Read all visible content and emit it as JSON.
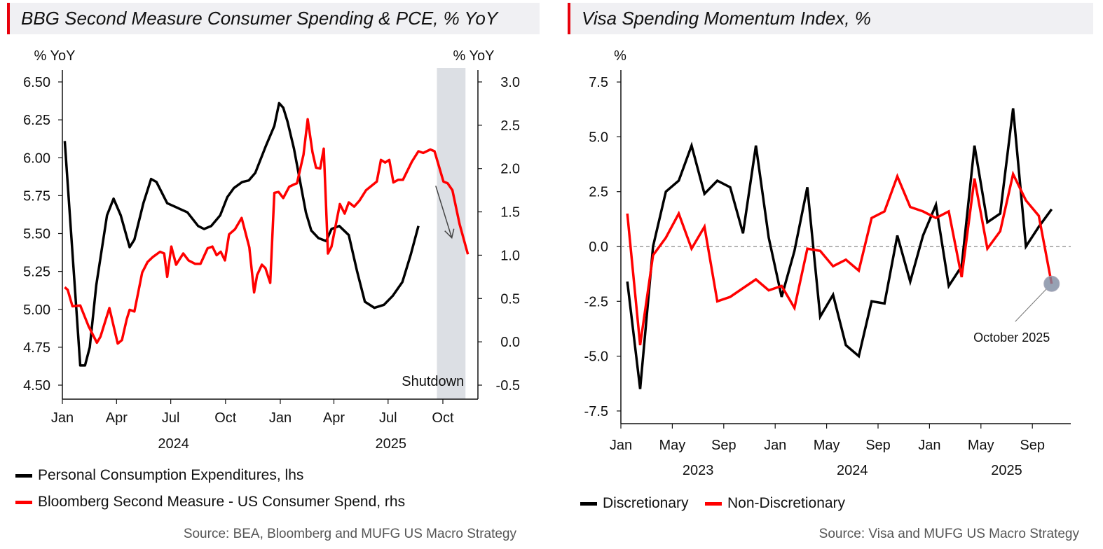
{
  "left": {
    "title": "BBG Second Measure Consumer Spending & PCE, % YoY",
    "source": "Source: BEA, Bloomberg and MUFG US Macro Strategy",
    "legend": [
      {
        "label": "Personal Consumption Expenditures, lhs",
        "color": "#000000"
      },
      {
        "label": "Bloomberg Second Measure - US Consumer Spend, rhs",
        "color": "#ff0000"
      }
    ]
  },
  "right": {
    "title": "Visa Spending Momentum Index, %",
    "source": "Source: Visa and MUFG US Macro Strategy",
    "legend": [
      {
        "label": "Discretionary",
        "color": "#000000"
      },
      {
        "label": "Non-Discretionary",
        "color": "#ff0000"
      }
    ]
  },
  "chart_data": [
    {
      "type": "line",
      "title": "BBG Second Measure Consumer Spending & PCE, % YoY",
      "ylabel": "% YoY",
      "y2label": "% YoY",
      "ylim": [
        4.5,
        6.5
      ],
      "y2lim": [
        -0.5,
        3.0
      ],
      "yticks": [
        "6.50",
        "6.25",
        "6.00",
        "5.75",
        "5.50",
        "5.25",
        "5.00",
        "4.75",
        "4.50"
      ],
      "y2ticks": [
        "3.0",
        "2.5",
        "2.0",
        "1.5",
        "1.0",
        "0.5",
        "0.0",
        "-0.5"
      ],
      "xlim": [
        "2024-01-01",
        "2025-11-28"
      ],
      "xticks": [
        {
          "date": "2024-01-01",
          "label": "Jan"
        },
        {
          "date": "2024-04-01",
          "label": "Apr"
        },
        {
          "date": "2024-07-01",
          "label": "Jul"
        },
        {
          "date": "2024-10-01",
          "label": "Oct"
        },
        {
          "date": "2025-01-01",
          "label": "Jan"
        },
        {
          "date": "2025-04-01",
          "label": "Apr"
        },
        {
          "date": "2025-07-01",
          "label": "Jul"
        },
        {
          "date": "2025-10-01",
          "label": "Oct"
        }
      ],
      "years": [
        {
          "label": "2024",
          "date": "2024-07-01"
        },
        {
          "label": "2025",
          "date": "2025-07-01"
        }
      ],
      "shaded": {
        "label": "Shutdown",
        "from": "2025-09-21",
        "to": "2025-11-08",
        "color": "#dcdfe4"
      },
      "grid": false,
      "legend_position": "bottom",
      "series": [
        {
          "name": "Personal Consumption Expenditures, lhs",
          "axis": "left",
          "color": "#000000",
          "points": [
            [
              "2024-01-05",
              6.11
            ],
            [
              "2024-01-31",
              4.63
            ],
            [
              "2024-02-08",
              4.63
            ],
            [
              "2024-02-16",
              4.75
            ],
            [
              "2024-02-27",
              5.16
            ],
            [
              "2024-03-16",
              5.62
            ],
            [
              "2024-03-27",
              5.73
            ],
            [
              "2024-04-08",
              5.62
            ],
            [
              "2024-04-23",
              5.41
            ],
            [
              "2024-05-01",
              5.46
            ],
            [
              "2024-05-16",
              5.7
            ],
            [
              "2024-05-29",
              5.86
            ],
            [
              "2024-06-07",
              5.84
            ],
            [
              "2024-06-25",
              5.7
            ],
            [
              "2024-07-29",
              5.64
            ],
            [
              "2024-08-16",
              5.55
            ],
            [
              "2024-08-26",
              5.53
            ],
            [
              "2024-09-07",
              5.55
            ],
            [
              "2024-09-22",
              5.62
            ],
            [
              "2024-10-04",
              5.74
            ],
            [
              "2024-10-15",
              5.8
            ],
            [
              "2024-10-29",
              5.84
            ],
            [
              "2024-11-09",
              5.85
            ],
            [
              "2024-11-20",
              5.9
            ],
            [
              "2024-12-08",
              6.08
            ],
            [
              "2024-12-22",
              6.21
            ],
            [
              "2024-12-30",
              6.36
            ],
            [
              "2025-01-06",
              6.33
            ],
            [
              "2025-01-13",
              6.24
            ],
            [
              "2025-01-24",
              6.06
            ],
            [
              "2025-02-13",
              5.64
            ],
            [
              "2025-02-22",
              5.52
            ],
            [
              "2025-03-06",
              5.47
            ],
            [
              "2025-03-19",
              5.45
            ],
            [
              "2025-03-28",
              5.53
            ],
            [
              "2025-04-10",
              5.55
            ],
            [
              "2025-04-26",
              5.49
            ],
            [
              "2025-05-10",
              5.25
            ],
            [
              "2025-05-23",
              5.05
            ],
            [
              "2025-06-08",
              5.01
            ],
            [
              "2025-06-24",
              5.03
            ],
            [
              "2025-07-09",
              5.09
            ],
            [
              "2025-07-25",
              5.18
            ],
            [
              "2025-08-08",
              5.36
            ],
            [
              "2025-08-21",
              5.55
            ]
          ]
        },
        {
          "name": "Bloomberg Second Measure - US Consumer Spend, rhs",
          "axis": "right",
          "color": "#ff0000",
          "points": [
            [
              "2024-01-05",
              0.63
            ],
            [
              "2024-01-10",
              0.6
            ],
            [
              "2024-01-18",
              0.41
            ],
            [
              "2024-01-31",
              0.42
            ],
            [
              "2024-02-14",
              0.18
            ],
            [
              "2024-02-28",
              -0.01
            ],
            [
              "2024-03-05",
              0.06
            ],
            [
              "2024-03-20",
              0.39
            ],
            [
              "2024-04-03",
              -0.02
            ],
            [
              "2024-04-10",
              0.02
            ],
            [
              "2024-04-18",
              0.26
            ],
            [
              "2024-04-23",
              0.37
            ],
            [
              "2024-05-01",
              0.35
            ],
            [
              "2024-05-14",
              0.8
            ],
            [
              "2024-05-23",
              0.92
            ],
            [
              "2024-06-01",
              0.98
            ],
            [
              "2024-06-13",
              1.04
            ],
            [
              "2024-06-20",
              1.02
            ],
            [
              "2024-06-25",
              0.75
            ],
            [
              "2024-07-02",
              1.1
            ],
            [
              "2024-07-10",
              0.89
            ],
            [
              "2024-07-22",
              1.02
            ],
            [
              "2024-07-31",
              0.94
            ],
            [
              "2024-08-11",
              0.9
            ],
            [
              "2024-08-20",
              0.9
            ],
            [
              "2024-09-01",
              1.08
            ],
            [
              "2024-09-09",
              1.1
            ],
            [
              "2024-09-16",
              1.0
            ],
            [
              "2024-09-23",
              1.04
            ],
            [
              "2024-09-30",
              0.94
            ],
            [
              "2024-10-07",
              1.24
            ],
            [
              "2024-10-17",
              1.3
            ],
            [
              "2024-10-28",
              1.43
            ],
            [
              "2024-11-10",
              1.09
            ],
            [
              "2024-11-18",
              0.57
            ],
            [
              "2024-11-23",
              0.77
            ],
            [
              "2024-12-01",
              0.89
            ],
            [
              "2024-12-07",
              0.85
            ],
            [
              "2024-12-15",
              0.68
            ],
            [
              "2024-12-22",
              1.72
            ],
            [
              "2024-12-29",
              1.73
            ],
            [
              "2025-01-06",
              1.66
            ],
            [
              "2025-01-16",
              1.79
            ],
            [
              "2025-01-25",
              1.82
            ],
            [
              "2025-01-29",
              1.83
            ],
            [
              "2025-02-09",
              2.16
            ],
            [
              "2025-02-16",
              2.57
            ],
            [
              "2025-02-24",
              2.19
            ],
            [
              "2025-03-02",
              2.01
            ],
            [
              "2025-03-09",
              2.0
            ],
            [
              "2025-03-15",
              2.23
            ],
            [
              "2025-03-22",
              1.02
            ],
            [
              "2025-03-28",
              1.1
            ],
            [
              "2025-04-11",
              1.59
            ],
            [
              "2025-04-19",
              1.48
            ],
            [
              "2025-04-26",
              1.61
            ],
            [
              "2025-05-05",
              1.56
            ],
            [
              "2025-05-14",
              1.63
            ],
            [
              "2025-05-25",
              1.75
            ],
            [
              "2025-06-12",
              1.85
            ],
            [
              "2025-06-19",
              2.1
            ],
            [
              "2025-06-26",
              2.07
            ],
            [
              "2025-07-03",
              2.1
            ],
            [
              "2025-07-10",
              1.84
            ],
            [
              "2025-07-18",
              1.87
            ],
            [
              "2025-07-26",
              1.87
            ],
            [
              "2025-08-10",
              2.08
            ],
            [
              "2025-08-21",
              2.2
            ],
            [
              "2025-08-29",
              2.18
            ],
            [
              "2025-09-10",
              2.22
            ],
            [
              "2025-09-17",
              2.2
            ],
            [
              "2025-10-02",
              1.85
            ],
            [
              "2025-10-09",
              1.83
            ],
            [
              "2025-10-17",
              1.75
            ],
            [
              "2025-10-29",
              1.36
            ],
            [
              "2025-11-12",
              1.01
            ]
          ]
        }
      ]
    },
    {
      "type": "line",
      "title": "Visa Spending Momentum Index, %",
      "ylabel": "%",
      "ylim": [
        -7.5,
        7.5
      ],
      "yticks": [
        "7.5",
        "5.0",
        "2.5",
        "0.0",
        "-2.5",
        "-5.0",
        "-7.5"
      ],
      "reference_line": {
        "y": 0,
        "style": "dashed",
        "color": "#888888"
      },
      "xticks": [
        "Jan",
        "May",
        "Sep",
        "Jan",
        "May",
        "Sep",
        "Jan",
        "May",
        "Sep"
      ],
      "years": [
        "2023",
        "2024",
        "2025"
      ],
      "grid": false,
      "legend_position": "bottom",
      "annotation": {
        "label": "October 2025",
        "month": "2025-10"
      },
      "x": [
        "2023-01",
        "2023-02",
        "2023-03",
        "2023-04",
        "2023-05",
        "2023-06",
        "2023-07",
        "2023-08",
        "2023-09",
        "2023-10",
        "2023-11",
        "2023-12",
        "2024-01",
        "2024-02",
        "2024-03",
        "2024-04",
        "2024-05",
        "2024-06",
        "2024-07",
        "2024-08",
        "2024-09",
        "2024-10",
        "2024-11",
        "2024-12",
        "2025-01",
        "2025-02",
        "2025-03",
        "2025-04",
        "2025-05",
        "2025-06",
        "2025-07",
        "2025-08",
        "2025-09",
        "2025-10"
      ],
      "series": [
        {
          "name": "Discretionary",
          "color": "#000000",
          "values": [
            -1.6,
            -6.5,
            0.0,
            2.5,
            3.0,
            4.6,
            2.4,
            3.0,
            2.7,
            0.6,
            4.6,
            0.4,
            -2.3,
            -0.2,
            2.7,
            -3.2,
            -2.2,
            -4.5,
            -5.0,
            -2.5,
            -2.6,
            0.5,
            -1.6,
            0.5,
            1.9,
            -1.8,
            -0.9,
            4.6,
            1.1,
            1.5,
            6.3,
            0.0,
            0.9,
            1.7
          ]
        },
        {
          "name": "Non-Discretionary",
          "color": "#ff0000",
          "values": [
            1.5,
            -4.5,
            -0.4,
            0.4,
            1.5,
            -0.1,
            0.9,
            -2.5,
            -2.3,
            -1.9,
            -1.5,
            -2.0,
            -1.8,
            -2.8,
            -0.1,
            -0.2,
            -0.9,
            -0.6,
            -1.1,
            1.3,
            1.6,
            3.2,
            1.8,
            1.6,
            1.3,
            1.6,
            -1.4,
            3.1,
            -0.1,
            0.7,
            3.3,
            2.1,
            1.4,
            -1.7
          ]
        }
      ]
    }
  ]
}
